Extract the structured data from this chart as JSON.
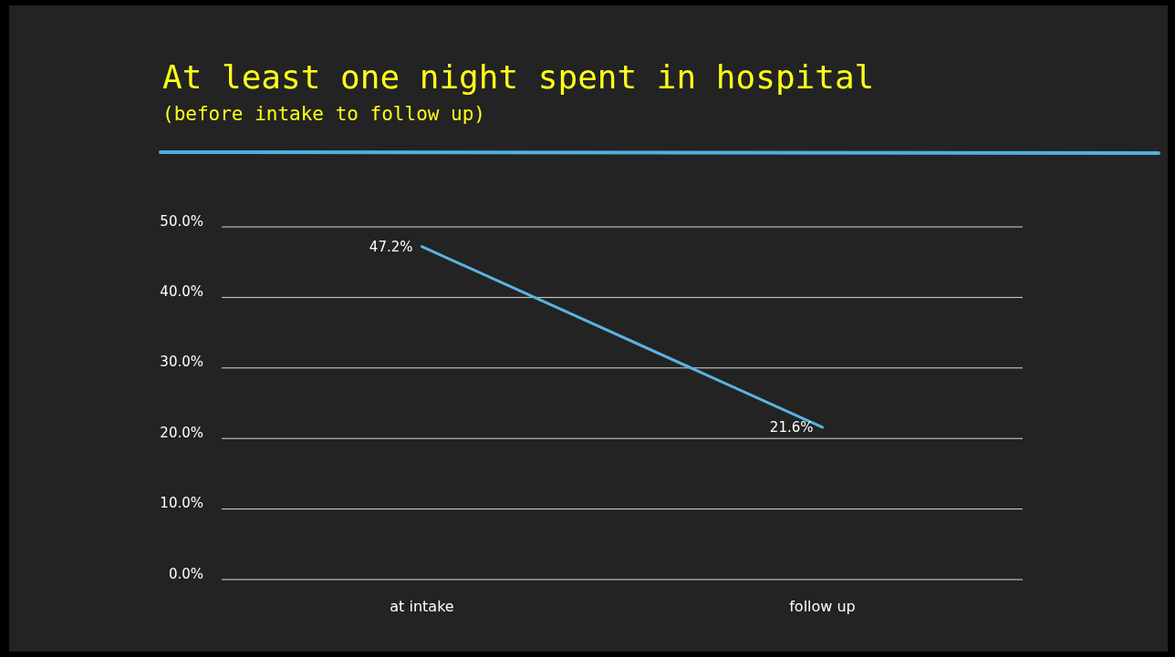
{
  "chart_data": {
    "type": "line",
    "title": "At least one night spent in hospital",
    "subtitle": "(before intake to follow up)",
    "categories": [
      "at intake",
      "follow up"
    ],
    "series": [
      {
        "color": "#5ab4e0",
        "values": [
          47.2,
          21.6
        ]
      }
    ],
    "value_labels": [
      "47.2%",
      "21.6%"
    ],
    "ylim": [
      0,
      50
    ],
    "yticks": [
      {
        "value": 0,
        "label": "0.0%"
      },
      {
        "value": 10,
        "label": "10.0%"
      },
      {
        "value": 20,
        "label": "20.0%"
      },
      {
        "value": 30,
        "label": "30.0%"
      },
      {
        "value": 40,
        "label": "40.0%"
      },
      {
        "value": 50,
        "label": "50.0%"
      }
    ],
    "grid": "y",
    "marker": "none",
    "line_style": "solid"
  }
}
